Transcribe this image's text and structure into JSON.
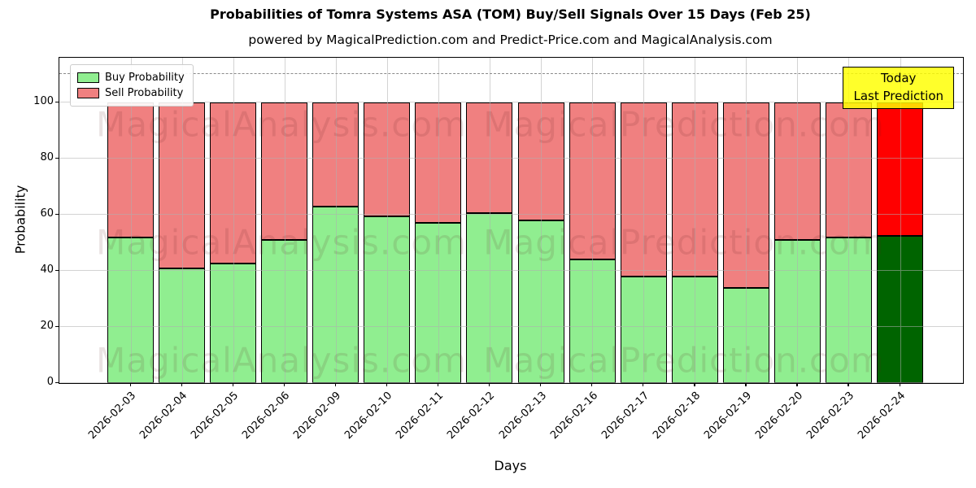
{
  "title": "Probabilities of Tomra Systems ASA (TOM) Buy/Sell Signals Over 15 Days (Feb 25)",
  "subtitle": "powered by MagicalPrediction.com and Predict-Price.com and MagicalAnalysis.com",
  "axes": {
    "xlabel": "Days",
    "ylabel": "Probability",
    "yticks": [
      0,
      20,
      40,
      60,
      80,
      100
    ],
    "ylim": [
      0,
      116
    ],
    "grid": true,
    "dashed_line_y": 110.5
  },
  "legend": {
    "position": "upper-left",
    "items": [
      {
        "label": "Buy Probability",
        "color": "#90EE90"
      },
      {
        "label": "Sell Probability",
        "color": "#F08080"
      }
    ]
  },
  "annotation_box": {
    "line1": "Today",
    "line2": "Last Prediction",
    "bg_color": "#FFFF00"
  },
  "watermarks": {
    "left_text": "MagicalAnalysis.com",
    "right_text": "MagicalPrediction.com"
  },
  "colors": {
    "buy": "#90EE90",
    "sell": "#F08080",
    "buy_today": "#006400",
    "sell_today": "#FF0000",
    "bar_edge": "#000000"
  },
  "chart_data": {
    "type": "bar",
    "stacked": true,
    "categories": [
      "2026-02-03",
      "2026-02-04",
      "2026-02-05",
      "2026-02-06",
      "2026-02-09",
      "2026-02-10",
      "2026-02-11",
      "2026-02-12",
      "2026-02-13",
      "2026-02-16",
      "2026-02-17",
      "2026-02-18",
      "2026-02-19",
      "2026-02-20",
      "2026-02-23",
      "2026-02-24"
    ],
    "series": [
      {
        "name": "Buy Probability",
        "values": [
          52,
          41,
          42.5,
          51,
          63,
          59.5,
          57,
          60.5,
          58,
          44,
          38,
          38,
          34,
          51,
          52,
          52.5
        ]
      },
      {
        "name": "Sell Probability",
        "values": [
          48,
          59,
          57.5,
          49,
          37,
          40.5,
          43,
          39.5,
          42,
          56,
          62,
          62,
          66,
          49,
          48,
          47.5
        ]
      }
    ],
    "today_index": 15,
    "title": "Probabilities of Tomra Systems ASA (TOM) Buy/Sell Signals Over 15 Days (Feb 25)",
    "xlabel": "Days",
    "ylabel": "Probability",
    "ylim": [
      0,
      116
    ]
  }
}
